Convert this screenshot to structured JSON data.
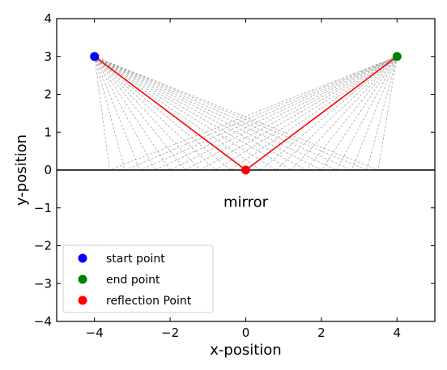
{
  "chart_data": {
    "type": "scatter",
    "xlabel": "x-position",
    "ylabel": "y-position",
    "xlim": [
      -5,
      5
    ],
    "ylim": [
      -4,
      4
    ],
    "xticks": [
      -4,
      -2,
      0,
      2,
      4
    ],
    "yticks": [
      -4,
      -3,
      -2,
      -1,
      0,
      1,
      2,
      3,
      4
    ],
    "xtick_labels": [
      "−4",
      "−2",
      "0",
      "2",
      "4"
    ],
    "ytick_labels": [
      "−4",
      "−3",
      "−2",
      "−1",
      "0",
      "1",
      "2",
      "3",
      "4"
    ],
    "grid": false,
    "legend_position": "lower-left",
    "mirror": {
      "y": 0,
      "color": "#000000"
    },
    "annotation": {
      "text": "mirror",
      "x": 0,
      "y": -0.85
    },
    "points": [
      {
        "name": "start point",
        "x": -4,
        "y": 3,
        "color": "#0000ff"
      },
      {
        "name": "end point",
        "x": 4,
        "y": 3,
        "color": "#008000"
      },
      {
        "name": "reflection Point",
        "x": 0,
        "y": 0,
        "color": "#ff0000"
      }
    ],
    "candidate_rays": {
      "color": "#aaaaaa",
      "mirror_x": [
        -3.6,
        -3.2,
        -2.8,
        -2.4,
        -2.0,
        -1.6,
        -1.2,
        -0.8,
        -0.4,
        0.0,
        0.4,
        0.8,
        1.2,
        1.6,
        2.0,
        2.4,
        2.8,
        3.2,
        3.5
      ]
    },
    "optimal_path": {
      "color": "#ff0000",
      "x": [
        -4,
        0,
        4
      ],
      "y": [
        3,
        0,
        3
      ]
    }
  }
}
